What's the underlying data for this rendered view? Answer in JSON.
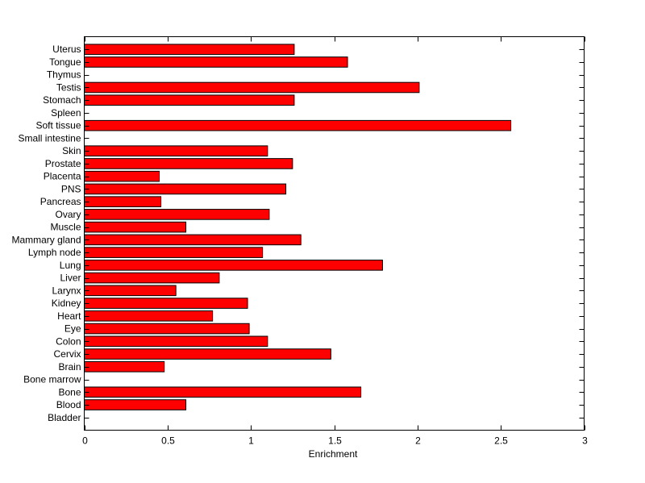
{
  "chart_data": {
    "type": "bar",
    "orientation": "horizontal",
    "title": "",
    "xlabel": "Enrichment",
    "ylabel": "",
    "xlim": [
      0,
      3
    ],
    "xticks": [
      "0",
      "0.5",
      "1",
      "1.5",
      "2",
      "2.5",
      "3"
    ],
    "xtick_values": [
      0,
      0.5,
      1,
      1.5,
      2,
      2.5,
      3
    ],
    "grid": false,
    "bar_color": "#ff0000",
    "categories": [
      "Bladder",
      "Blood",
      "Bone",
      "Bone marrow",
      "Brain",
      "Cervix",
      "Colon",
      "Eye",
      "Heart",
      "Kidney",
      "Larynx",
      "Liver",
      "Lung",
      "Lymph node",
      "Mammary gland",
      "Muscle",
      "Ovary",
      "Pancreas",
      "PNS",
      "Placenta",
      "Prostate",
      "Skin",
      "Small intestine",
      "Soft tissue",
      "Spleen",
      "Stomach",
      "Testis",
      "Thymus",
      "Tongue",
      "Uterus"
    ],
    "values": [
      0,
      0.61,
      1.66,
      0,
      0.48,
      1.48,
      1.1,
      0.99,
      0.77,
      0.98,
      0.55,
      0.81,
      1.79,
      1.07,
      1.3,
      0.61,
      1.11,
      0.46,
      1.21,
      0.45,
      1.25,
      1.1,
      0,
      2.56,
      0,
      1.26,
      2.01,
      0,
      1.58,
      1.26
    ]
  }
}
